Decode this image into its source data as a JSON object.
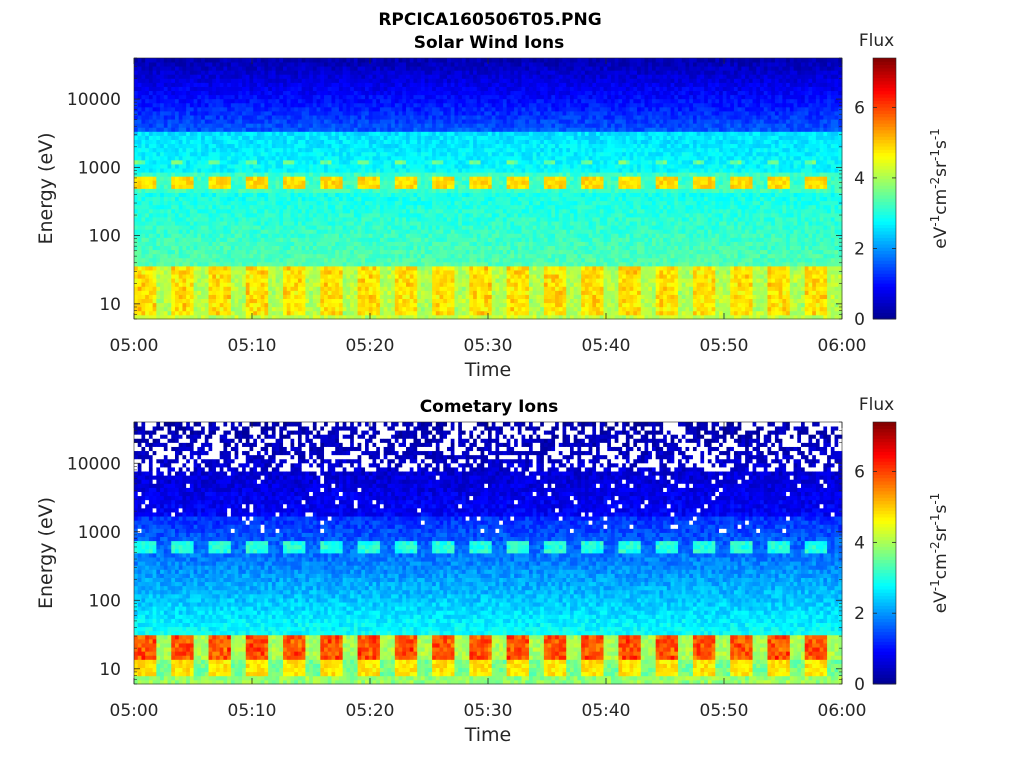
{
  "figure_title": "RPCICA160506T05.PNG",
  "colorscale": [
    "#00008f",
    "#0000ff",
    "#0080ff",
    "#00ffff",
    "#80ff80",
    "#ffff00",
    "#ff8000",
    "#ff0000",
    "#800000"
  ],
  "chart_data": [
    {
      "type": "heatmap",
      "title": "Solar Wind Ions",
      "xlabel": "Time",
      "ylabel": "Energy (eV)",
      "x_ticks": [
        "05:00",
        "05:10",
        "05:20",
        "05:30",
        "05:40",
        "05:50",
        "06:00"
      ],
      "x_range": [
        "05:00",
        "06:00"
      ],
      "y_scale": "log",
      "y_ticks": [
        "10",
        "100",
        "1000",
        "10000"
      ],
      "y_range": [
        6,
        40000
      ],
      "colorbar": {
        "title": "Flux",
        "label": "eV-1cm-2sr-1s-1",
        "ticks": [
          "0",
          "2",
          "4",
          "6"
        ],
        "range": [
          0,
          7.4
        ]
      },
      "features": [
        {
          "energy_ev": 600,
          "flux": 4.9,
          "pattern": "repeating bursts"
        },
        {
          "energy_ev": 1200,
          "flux": 3.6,
          "pattern": "repeating bursts"
        },
        {
          "energy_ev": 20,
          "flux": 4.7,
          "pattern": "repeating bursts"
        }
      ]
    },
    {
      "type": "heatmap",
      "title": "Cometary Ions",
      "xlabel": "Time",
      "ylabel": "Energy (eV)",
      "x_ticks": [
        "05:00",
        "05:10",
        "05:20",
        "05:30",
        "05:40",
        "05:50",
        "06:00"
      ],
      "x_range": [
        "05:00",
        "06:00"
      ],
      "y_scale": "log",
      "y_ticks": [
        "10",
        "100",
        "1000",
        "10000"
      ],
      "y_range": [
        6,
        40000
      ],
      "colorbar": {
        "title": "Flux",
        "label": "eV-1cm-2sr-1s-1",
        "ticks": [
          "0",
          "2",
          "4",
          "6"
        ],
        "range": [
          0,
          7.4
        ]
      },
      "features": [
        {
          "energy_ev": 600,
          "flux": 3.0,
          "pattern": "repeating bursts"
        },
        {
          "energy_ev": 22,
          "flux": 5.8,
          "pattern": "repeating bursts"
        }
      ]
    }
  ]
}
